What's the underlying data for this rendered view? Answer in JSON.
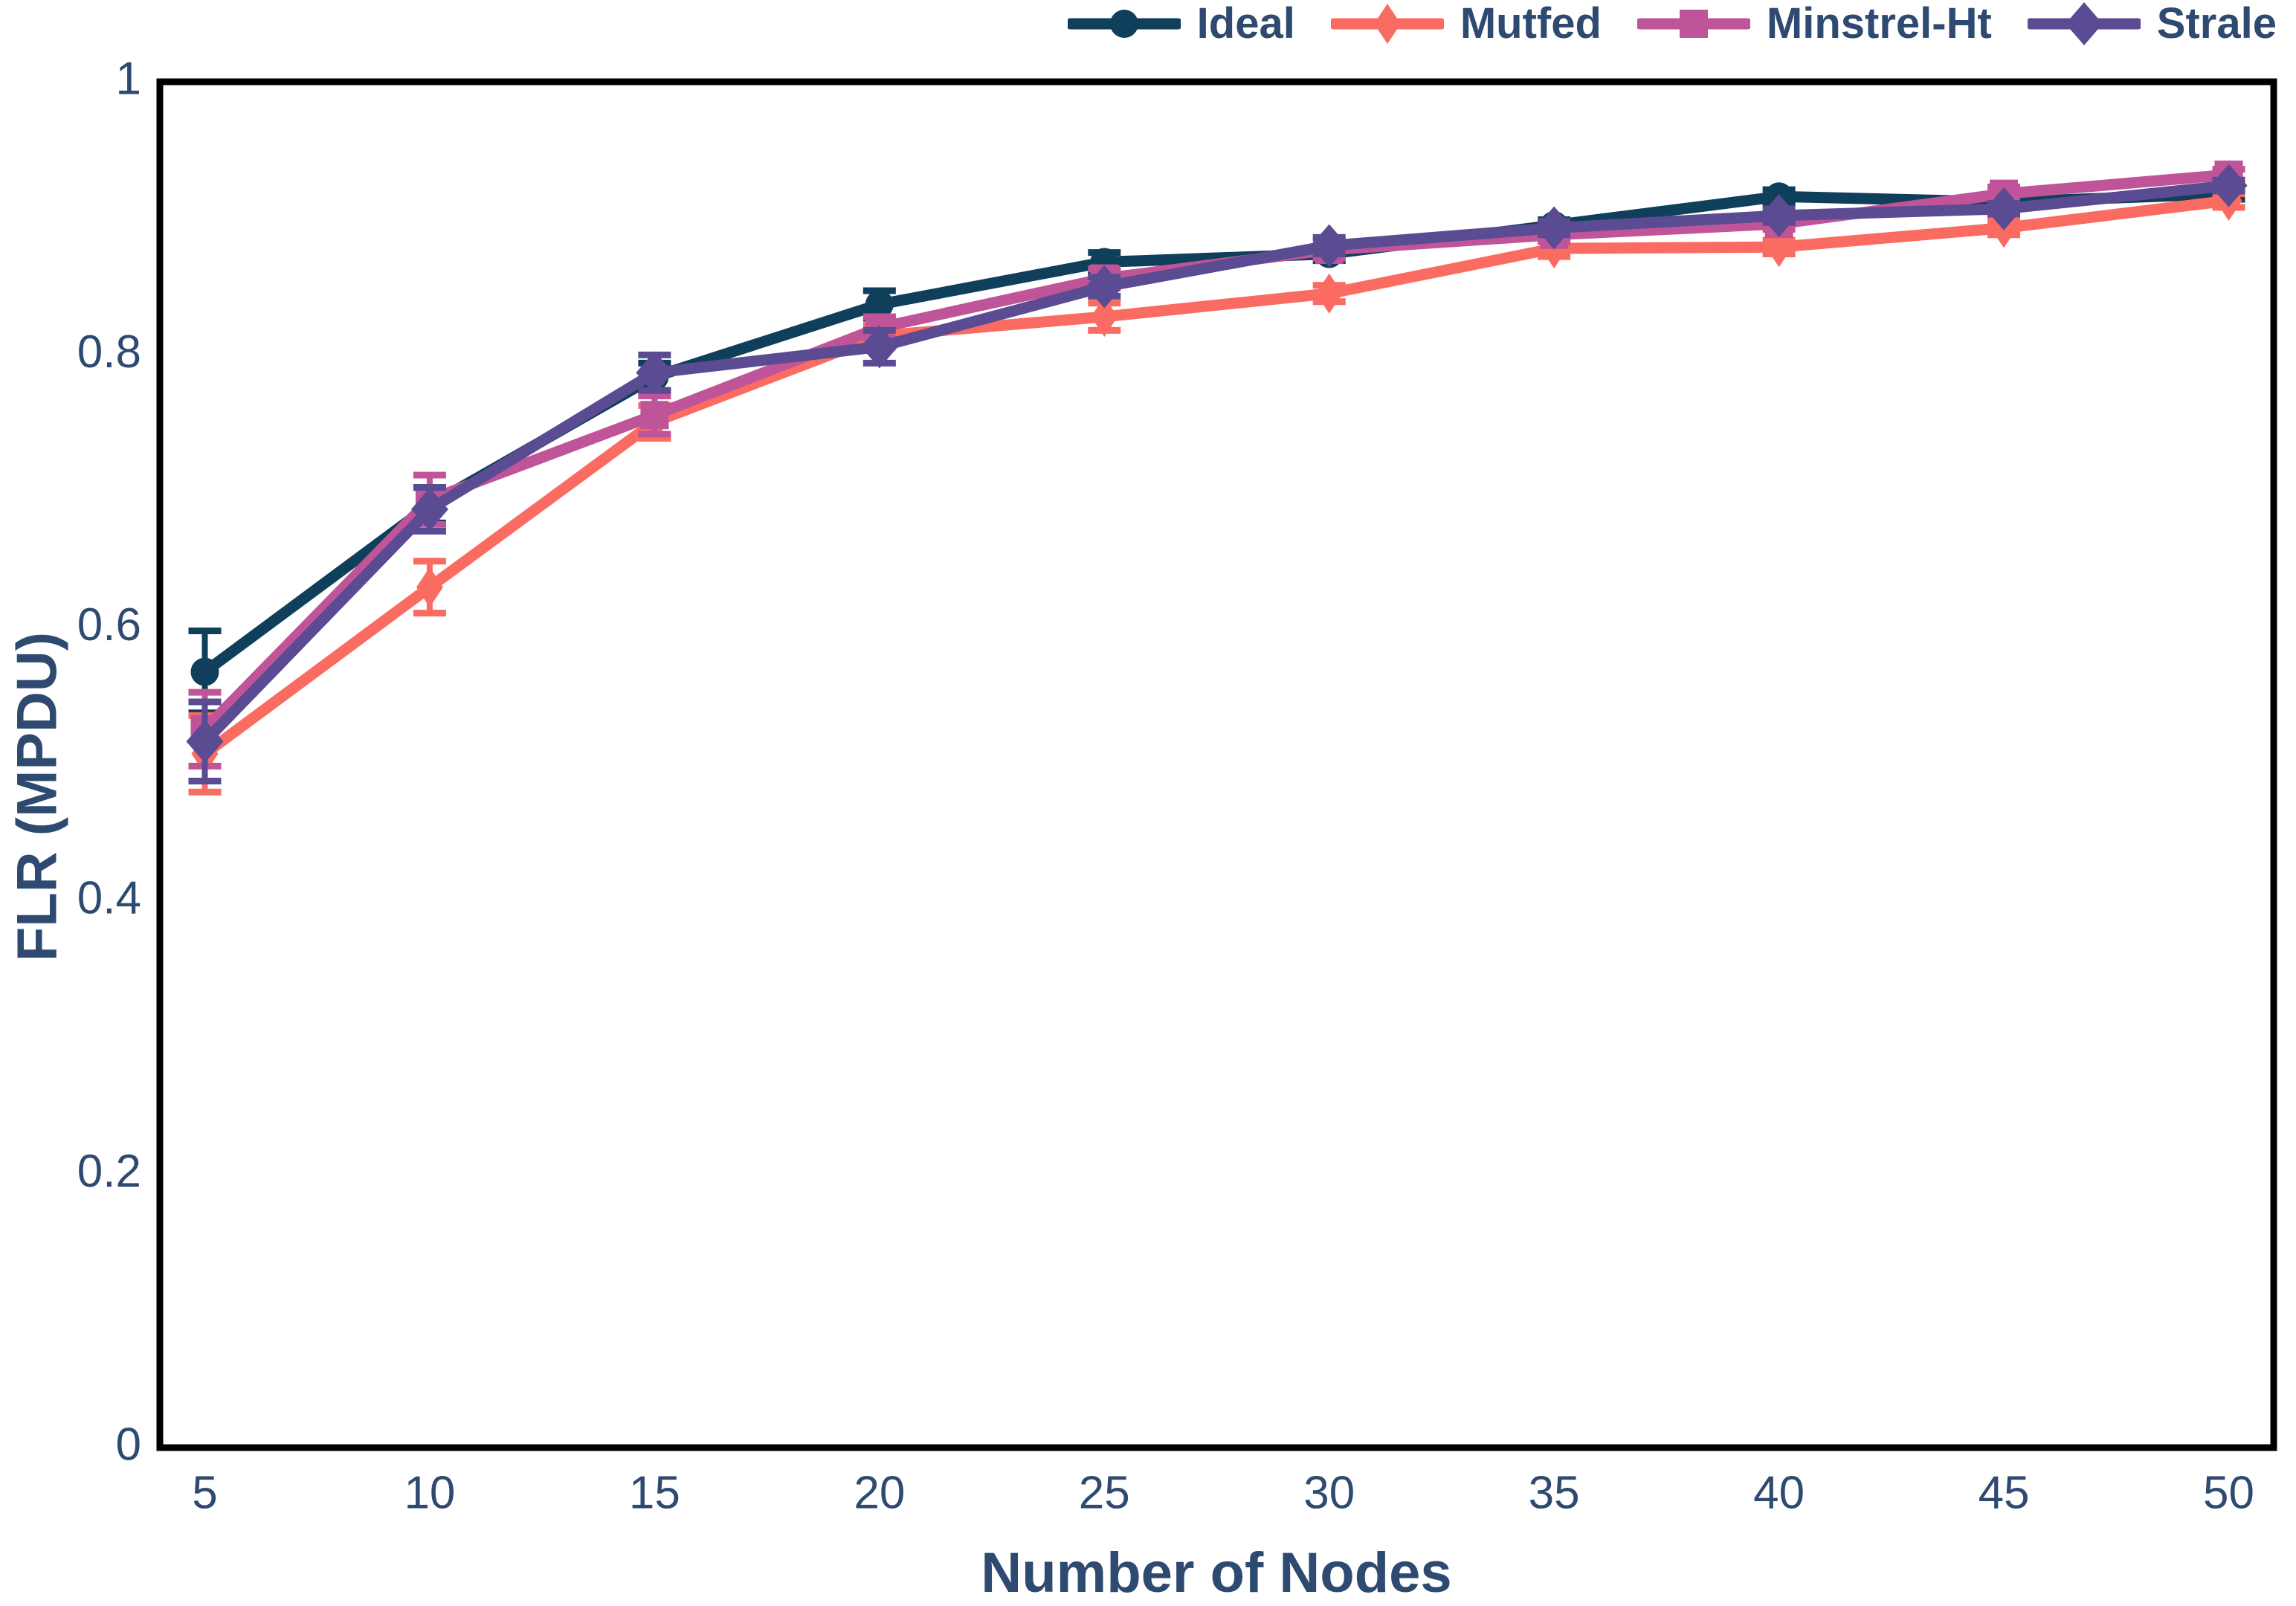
{
  "chart_data": {
    "type": "line",
    "title": "",
    "xlabel": "Number of Nodes",
    "ylabel": "FLR (MPDU)",
    "x": [
      5,
      10,
      15,
      20,
      25,
      30,
      35,
      40,
      45,
      50
    ],
    "xtick_labels": [
      "5",
      "10",
      "15",
      "20",
      "25",
      "30",
      "35",
      "40",
      "45",
      "50"
    ],
    "yticks": [
      0,
      0.2,
      0.4,
      0.6,
      0.8,
      1
    ],
    "ytick_labels": [
      "0",
      "0.2",
      "0.4",
      "0.6",
      "0.8",
      "1"
    ],
    "xlim": [
      4,
      51
    ],
    "ylim": [
      0,
      1
    ],
    "grid": false,
    "legend_position": "top-right-horizontal",
    "axis_color": "#000000",
    "text_color": "#2e4a70",
    "series": [
      {
        "name": "Ideal",
        "color": "#0f3f5a",
        "marker": "circle",
        "values": [
          0.568,
          0.69,
          0.784,
          0.837,
          0.868,
          0.874,
          0.895,
          0.916,
          0.912,
          0.918
        ],
        "errors": [
          0.03,
          0.013,
          0.01,
          0.01,
          0.007,
          0.005,
          0.004,
          0.005,
          0.004,
          0.004
        ]
      },
      {
        "name": "Mutfed",
        "color": "#fa6c62",
        "marker": "thin-diamond",
        "values": [
          0.508,
          0.63,
          0.751,
          0.814,
          0.828,
          0.845,
          0.878,
          0.879,
          0.893,
          0.913
        ],
        "errors": [
          0.028,
          0.019,
          0.012,
          0.008,
          0.01,
          0.006,
          0.006,
          0.005,
          0.005,
          0.005
        ]
      },
      {
        "name": "Minstrel-Ht",
        "color": "#c05499",
        "marker": "square",
        "values": [
          0.526,
          0.694,
          0.756,
          0.82,
          0.856,
          0.877,
          0.888,
          0.896,
          0.918,
          0.932
        ],
        "errors": [
          0.027,
          0.018,
          0.014,
          0.008,
          0.007,
          0.006,
          0.005,
          0.004,
          0.005,
          0.004
        ]
      },
      {
        "name": "Strale",
        "color": "#5a4b92",
        "marker": "diamond",
        "values": [
          0.517,
          0.687,
          0.787,
          0.806,
          0.85,
          0.88,
          0.893,
          0.902,
          0.907,
          0.924
        ],
        "errors": [
          0.029,
          0.016,
          0.013,
          0.012,
          0.007,
          0.006,
          0.005,
          0.005,
          0.004,
          0.004
        ]
      }
    ]
  }
}
